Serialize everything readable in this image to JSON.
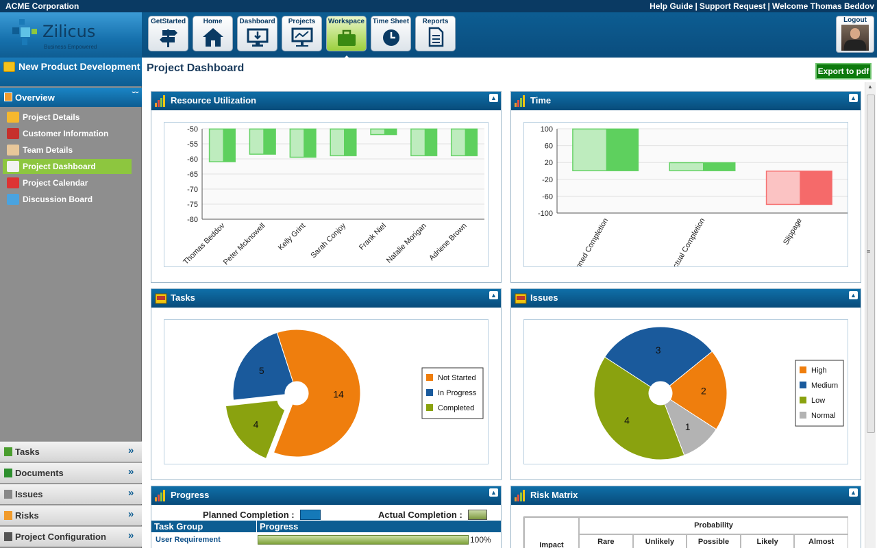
{
  "topbar": {
    "company": "ACME Corporation",
    "links": [
      "Help Guide",
      "Support Request"
    ],
    "welcome": "Welcome Thomas Beddov"
  },
  "logo": {
    "wordmark": "Zilicus",
    "tagline": "Business Empowered"
  },
  "nav": [
    {
      "label": "GetStarted",
      "icon": "signpost-icon",
      "active": false
    },
    {
      "label": "Home",
      "icon": "home-icon",
      "active": false
    },
    {
      "label": "Dashboard",
      "icon": "monitor-icon",
      "active": false
    },
    {
      "label": "Projects",
      "icon": "presentation-icon",
      "active": false
    },
    {
      "label": "Workspace",
      "icon": "briefcase-icon",
      "active": true
    },
    {
      "label": "Time Sheet",
      "icon": "clock-icon",
      "active": false
    },
    {
      "label": "Reports",
      "icon": "document-icon",
      "active": false
    }
  ],
  "logout": {
    "label": "Logout"
  },
  "sidebar": {
    "project_title": "New Product Development",
    "overview_label": "Overview",
    "items": [
      {
        "label": "Project Details",
        "icon": "project-details-icon",
        "color": "#f5b82e",
        "active": false
      },
      {
        "label": "Customer Information",
        "icon": "customer-icon",
        "color": "#c6302c",
        "active": false
      },
      {
        "label": "Team Details",
        "icon": "team-icon",
        "color": "#e8c79a",
        "active": false
      },
      {
        "label": "Project Dashboard",
        "icon": "dashboard-gauge-icon",
        "color": "#f2f2f2",
        "active": true
      },
      {
        "label": "Project Calendar",
        "icon": "calendar-icon",
        "color": "#d33",
        "active": false
      },
      {
        "label": "Discussion Board",
        "icon": "discussion-icon",
        "color": "#4aa3df",
        "active": false
      }
    ],
    "accordion": [
      {
        "label": "Tasks",
        "icon": "tasks-icon"
      },
      {
        "label": "Documents",
        "icon": "documents-icon"
      },
      {
        "label": "Issues",
        "icon": "issues-icon"
      },
      {
        "label": "Risks",
        "icon": "risks-icon"
      },
      {
        "label": "Project Configuration",
        "icon": "gear-icon"
      }
    ]
  },
  "main": {
    "title": "Project Dashboard",
    "export_label": "Export to pdf"
  },
  "panels": {
    "resource": {
      "title": "Resource Utilization"
    },
    "time": {
      "title": "Time"
    },
    "tasks": {
      "title": "Tasks"
    },
    "issues": {
      "title": "Issues"
    },
    "progress": {
      "title": "Progress",
      "planned_label": "Planned Completion :",
      "actual_label": "Actual Completion :",
      "col_group": "Task Group",
      "col_progress": "Progress",
      "rows": [
        {
          "group": "User Requirement",
          "percent": "100%",
          "fraction": 1.0
        }
      ]
    },
    "risk": {
      "title": "Risk Matrix",
      "probability_label": "Probability",
      "impact_label": "Impact",
      "columns": [
        "Rare",
        "Unlikely",
        "Possible",
        "Likely",
        "Almost"
      ]
    }
  },
  "chart_data": [
    {
      "type": "bar",
      "categories": [
        "Thomas Beddov",
        "Peter Mcknowell",
        "Kelly Grint",
        "Sarah Conjoy",
        "Frank Niel",
        "Natalie Morigan",
        "Adriene Brown"
      ],
      "values": [
        -61,
        -58.5,
        -59.5,
        -59,
        -52,
        -59,
        -59
      ],
      "ylim": [
        -80,
        -50
      ],
      "yticks": [
        -50,
        -55,
        -60,
        -65,
        -70,
        -75,
        -80
      ],
      "color": "#5ed05e"
    },
    {
      "type": "bar",
      "categories": [
        "Planned Completion",
        "Actual Completion",
        "Slippage"
      ],
      "values": [
        100,
        20,
        -80
      ],
      "ylim": [
        -100,
        100
      ],
      "yticks": [
        100,
        60,
        20,
        -20,
        -60,
        -100
      ],
      "colors": [
        "#5ed05e",
        "#5ed05e",
        "#f56a6a"
      ]
    },
    {
      "type": "pie",
      "slices": [
        {
          "label": "Not Started",
          "value": 14,
          "color": "#ef7e0d"
        },
        {
          "label": "Completed",
          "value": 4,
          "color": "#8aa20f"
        },
        {
          "label": "In Progress",
          "value": 5,
          "color": "#1a5a9c"
        }
      ],
      "legend": [
        "Not Started",
        "In Progress",
        "Completed"
      ],
      "legend_colors": [
        "#ef7e0d",
        "#1a5a9c",
        "#8aa20f"
      ],
      "legend_position": "right"
    },
    {
      "type": "pie",
      "slices": [
        {
          "label": "High",
          "value": 2,
          "color": "#ef7e0d"
        },
        {
          "label": "Normal",
          "value": 1,
          "color": "#b3b3b3"
        },
        {
          "label": "Low",
          "value": 4,
          "color": "#8aa20f"
        },
        {
          "label": "Medium",
          "value": 3,
          "color": "#1a5a9c"
        }
      ],
      "legend": [
        "High",
        "Medium",
        "Low",
        "Normal"
      ],
      "legend_colors": [
        "#ef7e0d",
        "#1a5a9c",
        "#8aa20f",
        "#b3b3b3"
      ],
      "legend_position": "right"
    }
  ]
}
